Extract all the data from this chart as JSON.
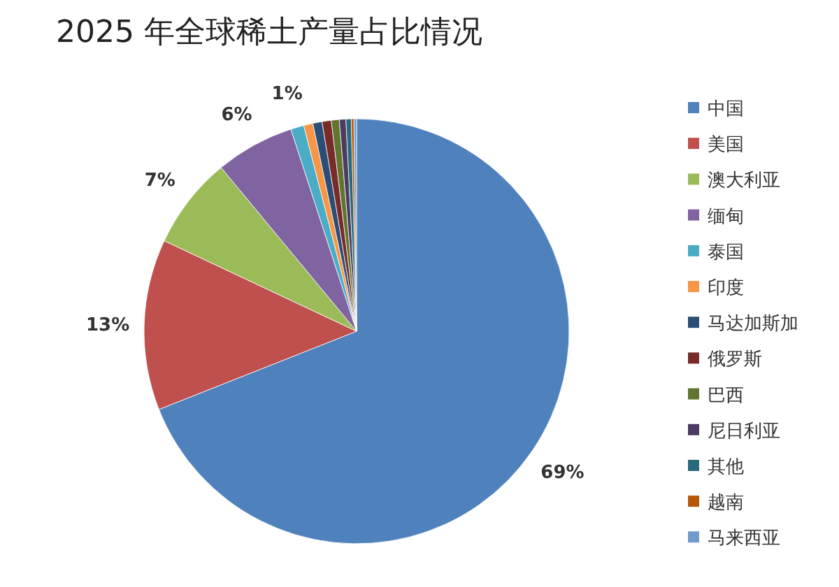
{
  "chart_data": {
    "type": "pie",
    "title": "2025 年全球稀土产量占比情况",
    "categories": [
      "中国",
      "美国",
      "澳大利亚",
      "缅甸",
      "泰国",
      "印度",
      "马达加斯加",
      "俄罗斯",
      "巴西",
      "尼日利亚",
      "其他",
      "越南",
      "马来西亚"
    ],
    "values": [
      69,
      13,
      7,
      6,
      1,
      0.7,
      0.7,
      0.7,
      0.6,
      0.5,
      0.4,
      0.2,
      0.2
    ],
    "value_labels": [
      "69%",
      "13%",
      "7%",
      "6%",
      "1%",
      null,
      null,
      null,
      null,
      null,
      null,
      null,
      null
    ],
    "colors": [
      "#4f81bd",
      "#c0504d",
      "#9bbb59",
      "#8064a2",
      "#4bacc6",
      "#f79646",
      "#2c4d75",
      "#772c2a",
      "#5f7530",
      "#4d3b62",
      "#276a7c",
      "#b65708",
      "#729aca"
    ],
    "legend": "right"
  }
}
